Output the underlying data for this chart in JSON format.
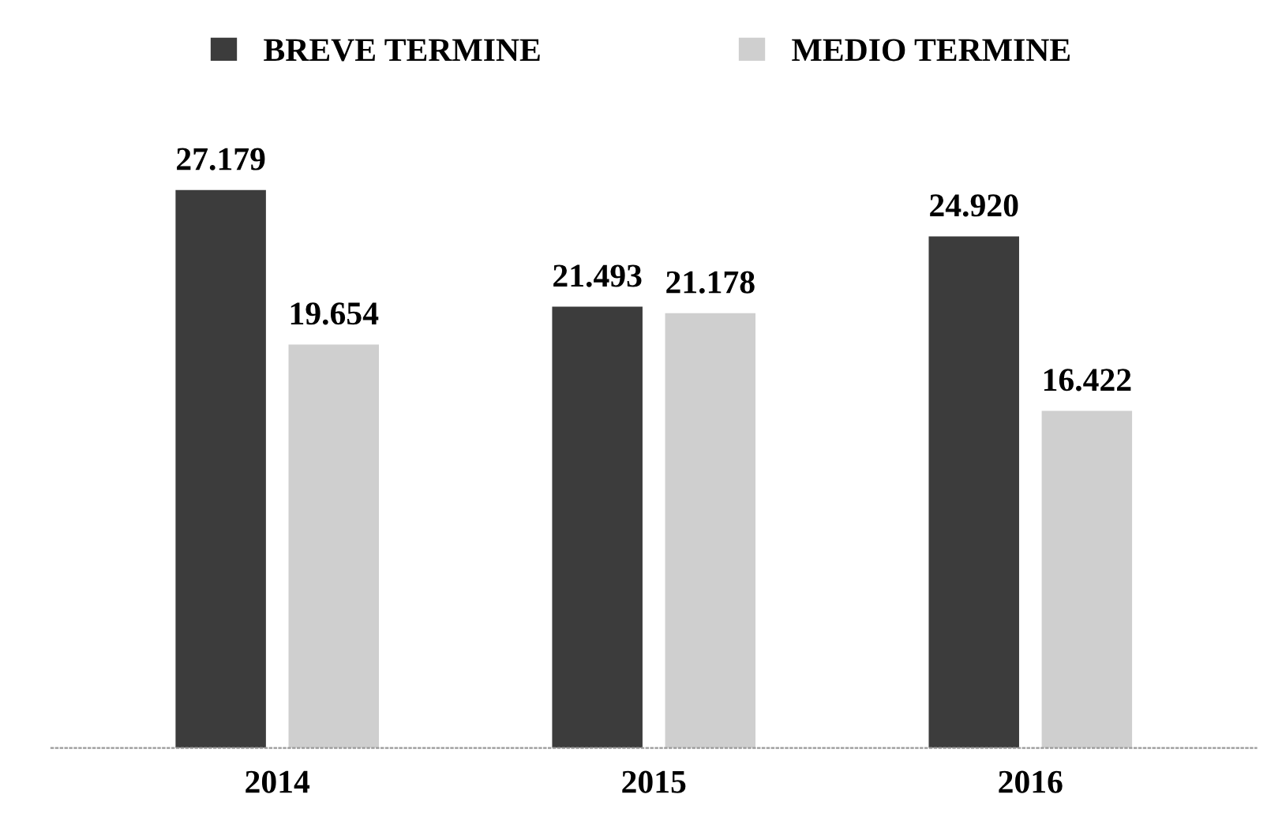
{
  "chart_data": {
    "type": "bar",
    "categories": [
      "2014",
      "2015",
      "2016"
    ],
    "series": [
      {
        "name": "BREVE TERMINE",
        "color": "#3c3c3c",
        "values": [
          27179,
          21493,
          24920
        ],
        "value_labels": [
          "27.179",
          "21.493",
          "24.920"
        ]
      },
      {
        "name": "MEDIO TERMINE",
        "color": "#cfcfcf",
        "values": [
          19654,
          21178,
          16422
        ],
        "value_labels": [
          "19.654",
          "21.178",
          "16.422"
        ]
      }
    ],
    "legend": "top",
    "grid": false
  }
}
